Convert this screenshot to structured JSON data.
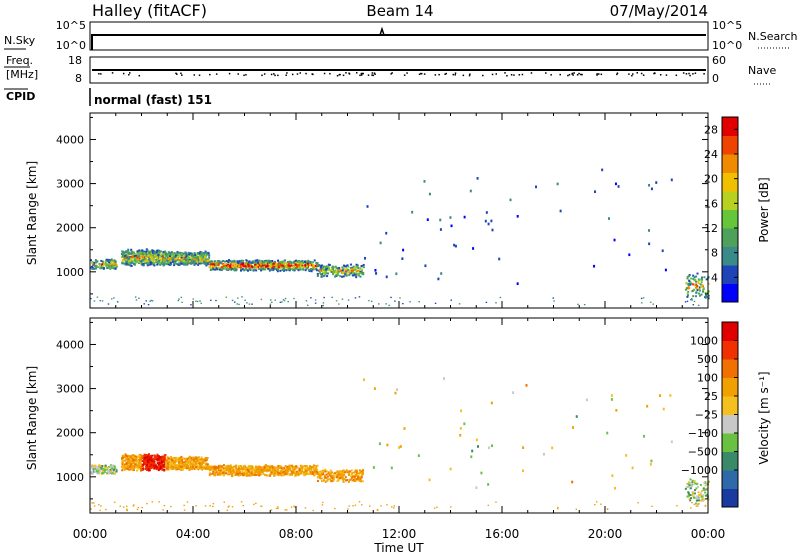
{
  "header": {
    "station": "Halley (fitACF)",
    "beam": "Beam 14",
    "date": "07/May/2014"
  },
  "noise_panel": {
    "left_label": "N.Sky",
    "right_label": "N.Search",
    "left_ticks": [
      "10^5",
      "10^0"
    ],
    "right_ticks": [
      "10^5",
      "10^0"
    ]
  },
  "freq_panel": {
    "left_label_1": "Freq.",
    "left_label_2": "[MHz]",
    "right_label": "Nave",
    "left_ticks": [
      "18",
      "8"
    ],
    "right_ticks": [
      "60",
      "0"
    ]
  },
  "cpid": {
    "label": "CPID",
    "text": "normal (fast) 151"
  },
  "chart_data": [
    {
      "type": "heatmap",
      "parameter": "Power",
      "ylabel": "Slant Range [km]",
      "xlabel": "Time UT",
      "xlim": [
        "00:00",
        "24:00"
      ],
      "ylim": [
        180,
        4600
      ],
      "y_ticks": [
        "1000",
        "2000",
        "3000",
        "4000"
      ],
      "colorbar": {
        "label": "Power [dB]",
        "ticks": [
          "4",
          "8",
          "12",
          "16",
          "20",
          "24",
          "28"
        ],
        "range": [
          0,
          30
        ],
        "colors": [
          "#0000ff",
          "#1e44b8",
          "#3a8a8a",
          "#4ea05a",
          "#66c63a",
          "#b8d020",
          "#f0c000",
          "#f08a00",
          "#ee4400",
          "#e00000"
        ]
      }
    },
    {
      "type": "heatmap",
      "parameter": "Velocity",
      "ylabel": "Slant Range [km]",
      "xlabel": "Time UT",
      "xlim": [
        "00:00",
        "24:00"
      ],
      "ylim": [
        180,
        4600
      ],
      "y_ticks": [
        "1000",
        "2000",
        "3000",
        "4000"
      ],
      "colorbar": {
        "label": "Velocity [m s⁻¹]",
        "ticks": [
          "1000",
          "500",
          "100",
          "25",
          "−25",
          "−100",
          "−500",
          "−1000"
        ],
        "colors": [
          "#1a3aa0",
          "#2f6aa8",
          "#3a8a6a",
          "#6ac040",
          "#c8c8c8",
          "#f4c020",
          "#f0a000",
          "#f07000",
          "#f03000",
          "#e00000"
        ]
      }
    }
  ],
  "time_axis": {
    "ticks": [
      "00:00",
      "04:00",
      "08:00",
      "12:00",
      "16:00",
      "20:00",
      "00:00"
    ],
    "label": "Time UT"
  }
}
